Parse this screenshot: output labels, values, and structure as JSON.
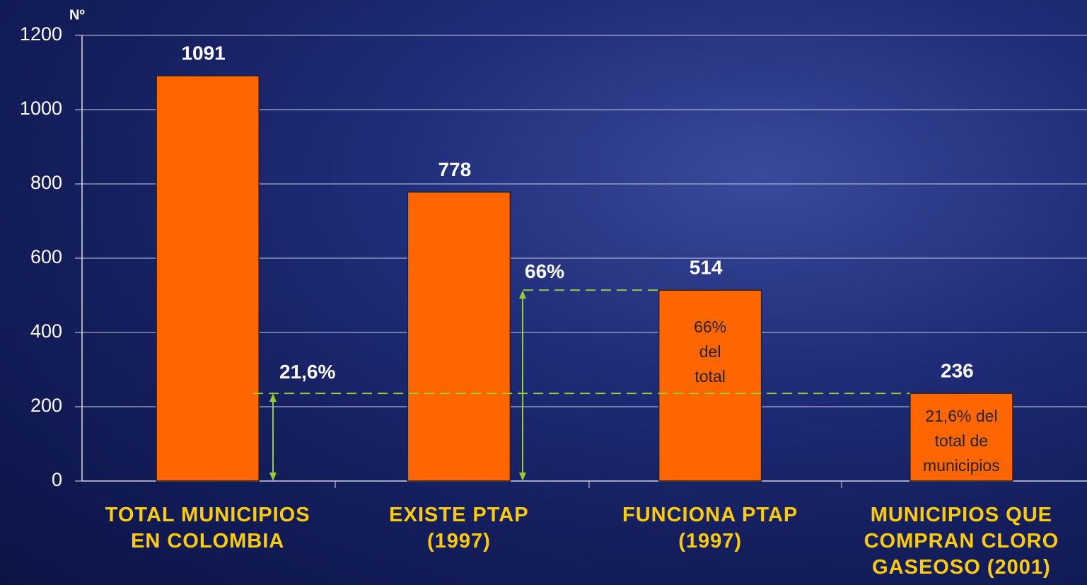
{
  "chart_data": {
    "type": "bar",
    "y_axis_label": "Nº",
    "categories": [
      "TOTAL MUNICIPIOS\nEN COLOMBIA",
      "EXISTE PTAP\n(1997)",
      "FUNCIONA PTAP\n(1997)",
      "MUNICIPIOS QUE\nCOMPRAN CLORO\nGASEOSO (2001)"
    ],
    "values": [
      1091,
      778,
      514,
      236
    ],
    "color": "#ff6600",
    "ylim": [
      0,
      1200
    ],
    "yticks": [
      0,
      200,
      400,
      600,
      800,
      1000,
      1200
    ],
    "grid": true,
    "annotations": [
      "21,6%",
      "66%"
    ],
    "bar_notes": [
      "66%\ndel\ntotal",
      "21,6% del\ntotal de\nmunicipios"
    ]
  }
}
